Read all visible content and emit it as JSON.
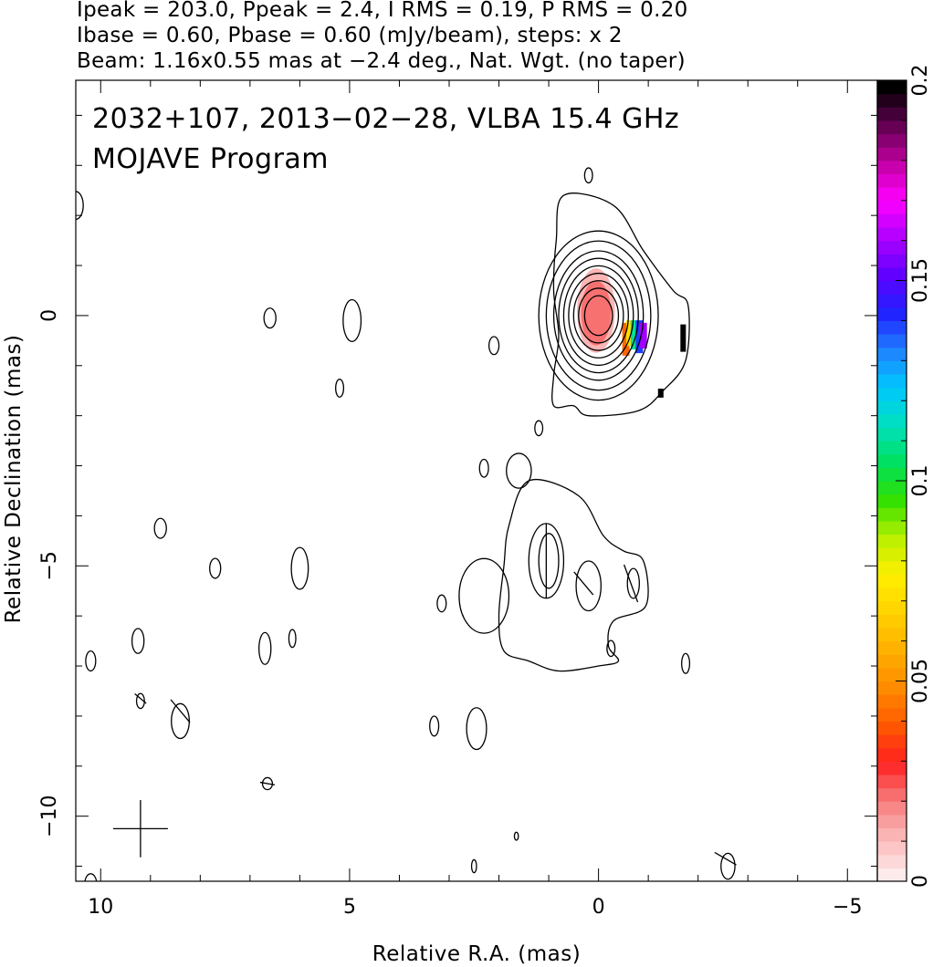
{
  "header": {
    "line1": "Ipeak = 203.0, Ppeak = 2.4, I RMS = 0.19, P RMS = 0.20",
    "line2": "Ibase = 0.60, Pbase = 0.60 (mJy/beam), steps: x 2",
    "line3": "Beam: 1.16x0.55 mas at −2.4 deg., Nat. Wgt. (no taper)"
  },
  "chart_data": {
    "type": "contour",
    "title": "2032+107, 2013−02−28, VLBA 15.4 GHz",
    "subtitle": "MOJAVE Program",
    "xlabel": "Relative R.A. (mas)",
    "ylabel": "Relative Declination (mas)",
    "xlim": [
      10.5,
      -5.6
    ],
    "ylim": [
      -11.3,
      4.7
    ],
    "x_ticks": [
      10,
      5,
      0,
      -5
    ],
    "x_tick_labels": [
      "10",
      "5",
      "0",
      "−5"
    ],
    "y_ticks": [
      0,
      -5,
      -10
    ],
    "y_tick_labels": [
      "0",
      "−5",
      "−10"
    ],
    "colorbar": {
      "label_values": [
        0,
        0.05,
        0.1,
        0.15,
        0.2
      ],
      "tick_labels": [
        "0",
        "0.05",
        "0.1",
        "0.15",
        "0.2"
      ],
      "colors_low_to_high": [
        "#fdeaea",
        "#fbb8b8",
        "#f77a7a",
        "#ff2020",
        "#ff5a00",
        "#ff8c00",
        "#ffb000",
        "#ffd200",
        "#fff000",
        "#b8f000",
        "#30e000",
        "#00e060",
        "#00e0c0",
        "#00c8ff",
        "#2080ff",
        "#2020ff",
        "#6000ff",
        "#b000ff",
        "#ff00ff",
        "#c000a0",
        "#600050",
        "#000000"
      ]
    },
    "core_contours": {
      "center": [
        0,
        0
      ],
      "levels_mJy_per_beam": [
        0.6,
        1.2,
        2.4,
        4.8,
        9.6,
        19.2,
        38.4,
        76.8,
        153.6
      ],
      "radii_mas": [
        [
          1.2,
          1.7
        ],
        [
          1.05,
          1.5
        ],
        [
          0.9,
          1.3
        ],
        [
          0.8,
          1.15
        ],
        [
          0.7,
          1.0
        ],
        [
          0.6,
          0.85
        ],
        [
          0.5,
          0.7
        ],
        [
          0.4,
          0.55
        ],
        [
          0.28,
          0.4
        ]
      ]
    },
    "outer_contour": {
      "points": [
        [
          0.7,
          2.4
        ],
        [
          -0.3,
          2.2
        ],
        [
          -0.9,
          1.3
        ],
        [
          -1.5,
          0.5
        ],
        [
          -1.8,
          0.2
        ],
        [
          -1.75,
          -0.9
        ],
        [
          -1.3,
          -1.5
        ],
        [
          -0.8,
          -1.9
        ],
        [
          0.2,
          -2.0
        ],
        [
          0.5,
          -1.8
        ],
        [
          0.9,
          -1.8
        ],
        [
          0.9,
          -1.2
        ],
        [
          0.8,
          -0.4
        ],
        [
          0.9,
          0.5
        ],
        [
          0.85,
          1.5
        ]
      ]
    },
    "jet_component_contour": {
      "points": [
        [
          1.4,
          -3.3
        ],
        [
          0.4,
          -3.6
        ],
        [
          -0.1,
          -4.4
        ],
        [
          -0.5,
          -4.7
        ],
        [
          -0.9,
          -4.9
        ],
        [
          -0.95,
          -5.8
        ],
        [
          -0.3,
          -6.1
        ],
        [
          -0.2,
          -6.6
        ],
        [
          -0.4,
          -6.9
        ],
        [
          0,
          -7.0
        ],
        [
          0.8,
          -7.1
        ],
        [
          1.4,
          -6.9
        ],
        [
          1.9,
          -6.7
        ],
        [
          2.0,
          -6.0
        ],
        [
          1.9,
          -5.0
        ],
        [
          1.8,
          -4.2
        ]
      ]
    },
    "jet_inner_contours": [
      {
        "center": [
          1.05,
          -4.9
        ],
        "radii": [
          0.35,
          0.75
        ]
      },
      {
        "center": [
          1.0,
          -4.9
        ],
        "radii": [
          0.2,
          0.55
        ]
      },
      {
        "center": [
          0.2,
          -5.4
        ],
        "radii": [
          0.25,
          0.5
        ]
      },
      {
        "center": [
          -0.7,
          -5.35
        ],
        "radii": [
          0.12,
          0.3
        ]
      }
    ],
    "noise_contours": [
      {
        "c": [
          10.5,
          2.2
        ],
        "r": [
          0.15,
          0.28
        ]
      },
      {
        "c": [
          6.6,
          -0.05
        ],
        "r": [
          0.12,
          0.2
        ]
      },
      {
        "c": [
          4.95,
          -0.1
        ],
        "r": [
          0.18,
          0.42
        ]
      },
      {
        "c": [
          5.2,
          -1.45
        ],
        "r": [
          0.08,
          0.18
        ]
      },
      {
        "c": [
          0.2,
          2.8
        ],
        "r": [
          0.08,
          0.15
        ]
      },
      {
        "c": [
          2.1,
          -0.6
        ],
        "r": [
          0.1,
          0.18
        ]
      },
      {
        "c": [
          1.2,
          -2.25
        ],
        "r": [
          0.08,
          0.15
        ]
      },
      {
        "c": [
          2.3,
          -3.05
        ],
        "r": [
          0.09,
          0.18
        ]
      },
      {
        "c": [
          1.6,
          -3.1
        ],
        "r": [
          0.25,
          0.35
        ]
      },
      {
        "c": [
          8.8,
          -4.25
        ],
        "r": [
          0.12,
          0.2
        ]
      },
      {
        "c": [
          7.7,
          -5.05
        ],
        "r": [
          0.11,
          0.2
        ]
      },
      {
        "c": [
          6.0,
          -5.05
        ],
        "r": [
          0.17,
          0.42
        ]
      },
      {
        "c": [
          3.15,
          -5.75
        ],
        "r": [
          0.09,
          0.17
        ]
      },
      {
        "c": [
          2.3,
          -5.6
        ],
        "r": [
          0.5,
          0.75
        ]
      },
      {
        "c": [
          9.25,
          -6.5
        ],
        "r": [
          0.12,
          0.25
        ]
      },
      {
        "c": [
          6.7,
          -6.65
        ],
        "r": [
          0.12,
          0.32
        ]
      },
      {
        "c": [
          6.15,
          -6.45
        ],
        "r": [
          0.07,
          0.18
        ]
      },
      {
        "c": [
          10.2,
          -6.9
        ],
        "r": [
          0.1,
          0.2
        ]
      },
      {
        "c": [
          -0.25,
          -6.65
        ],
        "r": [
          0.08,
          0.16
        ]
      },
      {
        "c": [
          -1.75,
          -6.95
        ],
        "r": [
          0.08,
          0.2
        ]
      },
      {
        "c": [
          9.2,
          -7.7
        ],
        "r": [
          0.08,
          0.15
        ]
      },
      {
        "c": [
          8.4,
          -8.1
        ],
        "r": [
          0.18,
          0.35
        ]
      },
      {
        "c": [
          3.3,
          -8.2
        ],
        "r": [
          0.09,
          0.2
        ]
      },
      {
        "c": [
          2.45,
          -8.25
        ],
        "r": [
          0.2,
          0.42
        ]
      },
      {
        "c": [
          6.65,
          -9.35
        ],
        "r": [
          0.1,
          0.12
        ]
      },
      {
        "c": [
          2.5,
          -11.0
        ],
        "r": [
          0.05,
          0.13
        ]
      },
      {
        "c": [
          -2.6,
          -11.0
        ],
        "r": [
          0.14,
          0.26
        ]
      },
      {
        "c": [
          10.2,
          -11.35
        ],
        "r": [
          0.12,
          0.2
        ]
      },
      {
        "c": [
          1.65,
          -10.4
        ],
        "r": [
          0.04,
          0.08
        ]
      }
    ],
    "fractional_polarization_pixels": [
      {
        "x": 0.05,
        "y": 0.1,
        "rx": 0.38,
        "ry": 0.85,
        "value": 0.01
      },
      {
        "x": 0.05,
        "y": 0.05,
        "rx": 0.3,
        "ry": 0.65,
        "value": 0.02
      },
      {
        "x": -0.55,
        "y": -0.4,
        "value": 0.04
      },
      {
        "x": -0.63,
        "y": -0.35,
        "value": 0.07
      },
      {
        "x": -0.72,
        "y": -0.35,
        "value": 0.11
      },
      {
        "x": -0.82,
        "y": -0.35,
        "value": 0.14
      },
      {
        "x": -0.9,
        "y": -0.4,
        "value": 0.16
      }
    ],
    "pol_vectors": [
      {
        "x": -1.7,
        "y": -0.45,
        "len": 0.55,
        "angle_deg": 0
      },
      {
        "x": -1.25,
        "y": -1.55,
        "len": 0.18,
        "angle_deg": 0
      },
      {
        "x": 1.05,
        "y": -4.9,
        "len": 1.5,
        "angle_deg": 0
      },
      {
        "x": -0.65,
        "y": -5.35,
        "len": 0.8,
        "angle_deg": 20
      },
      {
        "x": 0.3,
        "y": -5.35,
        "len": 0.6,
        "angle_deg": 40
      },
      {
        "x": 9.2,
        "y": -10.25,
        "len": 1.15,
        "angle_deg": 0
      },
      {
        "x": 8.4,
        "y": -7.9,
        "len": 0.6,
        "angle_deg": 40
      },
      {
        "x": 9.2,
        "y": -7.65,
        "len": 0.3,
        "angle_deg": 50
      },
      {
        "x": 6.65,
        "y": -9.35,
        "len": 0.3,
        "angle_deg": 80
      },
      {
        "x": -2.55,
        "y": -10.85,
        "len": 0.5,
        "angle_deg": 60
      }
    ],
    "cross_marker": {
      "x": 9.2,
      "y": -10.25,
      "size": 0.55
    }
  }
}
